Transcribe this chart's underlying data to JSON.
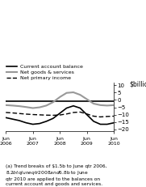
{
  "ylabel": "$billion",
  "ylim": [
    -21,
    12
  ],
  "yticks": [
    10,
    5,
    0,
    -5,
    -10,
    -15,
    -20
  ],
  "xlabel_years": [
    "Jun\n2006",
    "Jun\n2007",
    "Jun\n2008",
    "Jun\n2009",
    "Jun\n2010"
  ],
  "footnote": "(a) Trend breaks of $1.5b to June qtr 2006,\n$8.2b to June qtr 2008 and $6.8b to June\nqtr 2010 are applied to the balances on\ncurrent account and goods and services.",
  "current_account_balance": {
    "label": "Current account balance",
    "color": "#000000",
    "linestyle": "solid",
    "linewidth": 1.2,
    "x": [
      0,
      0.5,
      1.0,
      1.5,
      2.0,
      2.5,
      3.0,
      3.5,
      4.0
    ],
    "y": [
      -1.0,
      -1.0,
      -1.0,
      -1.0,
      -1.0,
      -1.0,
      -1.0,
      -1.0,
      -1.0
    ]
  },
  "net_goods_services": {
    "label": "Net goods & services",
    "color": "#999999",
    "linestyle": "solid",
    "linewidth": 1.5,
    "x": [
      0,
      0.25,
      0.5,
      0.75,
      1.0,
      1.25,
      1.5,
      1.75,
      2.0,
      2.25,
      2.5,
      2.75,
      3.0,
      3.25,
      3.5,
      3.75,
      4.0
    ],
    "y": [
      -3.5,
      -3.8,
      -4.2,
      -4.8,
      -5.5,
      -5.0,
      -3.8,
      -1.5,
      2.0,
      4.8,
      5.2,
      3.5,
      0.5,
      -2.5,
      -3.5,
      -3.8,
      -3.5
    ]
  },
  "net_primary_income": {
    "label": "Net primary income",
    "color": "#000000",
    "linewidth": 1.0,
    "x": [
      0,
      0.25,
      0.5,
      0.75,
      1.0,
      1.25,
      1.5,
      1.75,
      2.0,
      2.25,
      2.5,
      2.75,
      3.0,
      3.25,
      3.5,
      3.75,
      4.0
    ],
    "y": [
      -8.5,
      -8.8,
      -9.2,
      -9.6,
      -9.9,
      -10.1,
      -10.3,
      -10.4,
      -10.2,
      -9.5,
      -8.5,
      -8.2,
      -9.5,
      -11.0,
      -11.5,
      -11.2,
      -11.0
    ]
  },
  "current_account_total": {
    "label": "current_account_total",
    "color": "#000000",
    "linewidth": 1.2,
    "x": [
      0,
      0.25,
      0.5,
      0.75,
      1.0,
      1.25,
      1.5,
      1.75,
      2.0,
      2.25,
      2.5,
      2.75,
      3.0,
      3.25,
      3.5,
      3.75,
      4.0
    ],
    "y": [
      -12.0,
      -13.0,
      -14.0,
      -15.5,
      -16.5,
      -16.0,
      -14.5,
      -12.5,
      -9.0,
      -5.5,
      -4.0,
      -5.5,
      -10.0,
      -14.5,
      -16.5,
      -16.5,
      -15.5
    ]
  }
}
